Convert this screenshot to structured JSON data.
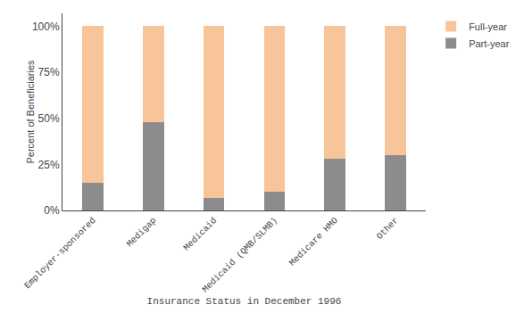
{
  "chart_data": {
    "type": "bar",
    "stacked": true,
    "categories": [
      "Employer-sponsored",
      "Medigap",
      "Medicaid",
      "Medicaid (QMB/SLMB)",
      "Medicare HMO",
      "Other"
    ],
    "series": [
      {
        "name": "Part-year",
        "color": "#8C8C8C",
        "values": [
          15,
          48,
          7,
          10,
          28,
          30
        ]
      },
      {
        "name": "Full-year",
        "color": "#F8C49A",
        "values": [
          85,
          52,
          93,
          90,
          72,
          70
        ]
      }
    ],
    "xlabel": "Insurance Status in December 1996",
    "ylabel": "Percent of Beneficiaries",
    "ylim": [
      0,
      107
    ],
    "yticks": [
      {
        "value": 0,
        "label": "0%"
      },
      {
        "value": 25,
        "label": "25%"
      },
      {
        "value": 50,
        "label": "50%"
      },
      {
        "value": 75,
        "label": "75%"
      },
      {
        "value": 100,
        "label": "100%"
      }
    ],
    "grid": false,
    "legend": "upper right"
  }
}
